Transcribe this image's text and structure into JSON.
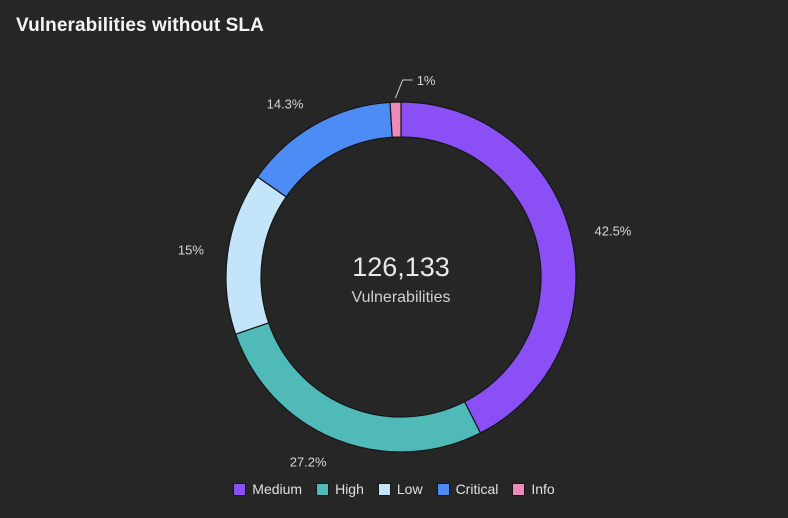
{
  "card": {
    "title": "Vulnerabilities without SLA"
  },
  "center": {
    "total": "126,133",
    "caption": "Vulnerabilities"
  },
  "chart_data": {
    "type": "pie",
    "variant": "donut",
    "title": "Vulnerabilities without SLA",
    "total": 126133,
    "total_label": "Vulnerabilities",
    "legend_position": "bottom-center",
    "series": [
      {
        "name": "Medium",
        "value": 42.5,
        "label": "42.5%",
        "color": "#8a4ff5"
      },
      {
        "name": "High",
        "value": 27.2,
        "label": "27.2%",
        "color": "#4fbab8"
      },
      {
        "name": "Low",
        "value": 15,
        "label": "15%",
        "color": "#c4e5f9"
      },
      {
        "name": "Critical",
        "value": 14.3,
        "label": "14.3%",
        "color": "#4d8cf5"
      },
      {
        "name": "Info",
        "value": 1,
        "label": "1%",
        "color": "#ee8ab8"
      }
    ]
  }
}
